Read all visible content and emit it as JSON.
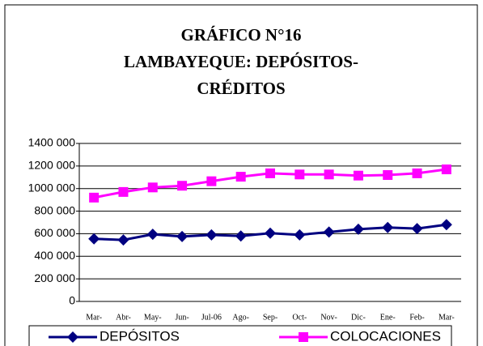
{
  "chart_data": {
    "type": "line",
    "title": [
      "GRÁFICO N°16",
      "LAMBAYEQUE: DEPÓSITOS-",
      "CRÉDITOS"
    ],
    "categories": [
      "Mar-",
      "Abr-",
      "May-",
      "Jun-",
      "Jul-06",
      "Ago-",
      "Sep-",
      "Oct-",
      "Nov-",
      "Dic-",
      "Ene-",
      "Feb-",
      "Mar-"
    ],
    "series": [
      {
        "name": "DEPÓSITOS",
        "color": "#000080",
        "marker": "diamond",
        "values": [
          555000,
          545000,
          595000,
          575000,
          590000,
          580000,
          605000,
          590000,
          615000,
          640000,
          655000,
          645000,
          680000
        ]
      },
      {
        "name": "COLOCACIONES",
        "color": "#ff00ff",
        "marker": "square",
        "values": [
          920000,
          970000,
          1010000,
          1025000,
          1065000,
          1105000,
          1135000,
          1125000,
          1125000,
          1115000,
          1120000,
          1135000,
          1170000
        ]
      }
    ],
    "ylim": [
      0,
      1400000
    ],
    "yticks": [
      0,
      {
        "value": 200000,
        "label": "200 000"
      },
      {
        "value": 400000,
        "label": "400 000"
      },
      {
        "value": 600000,
        "label": "600 000"
      },
      {
        "value": 800000,
        "label": "800 000"
      },
      {
        "value": 1000000,
        "label": "1000 000"
      },
      {
        "value": 1200000,
        "label": "1200 000"
      },
      {
        "value": 1400000,
        "label": "1400 000"
      }
    ],
    "grid": true,
    "legend": "bottom"
  }
}
